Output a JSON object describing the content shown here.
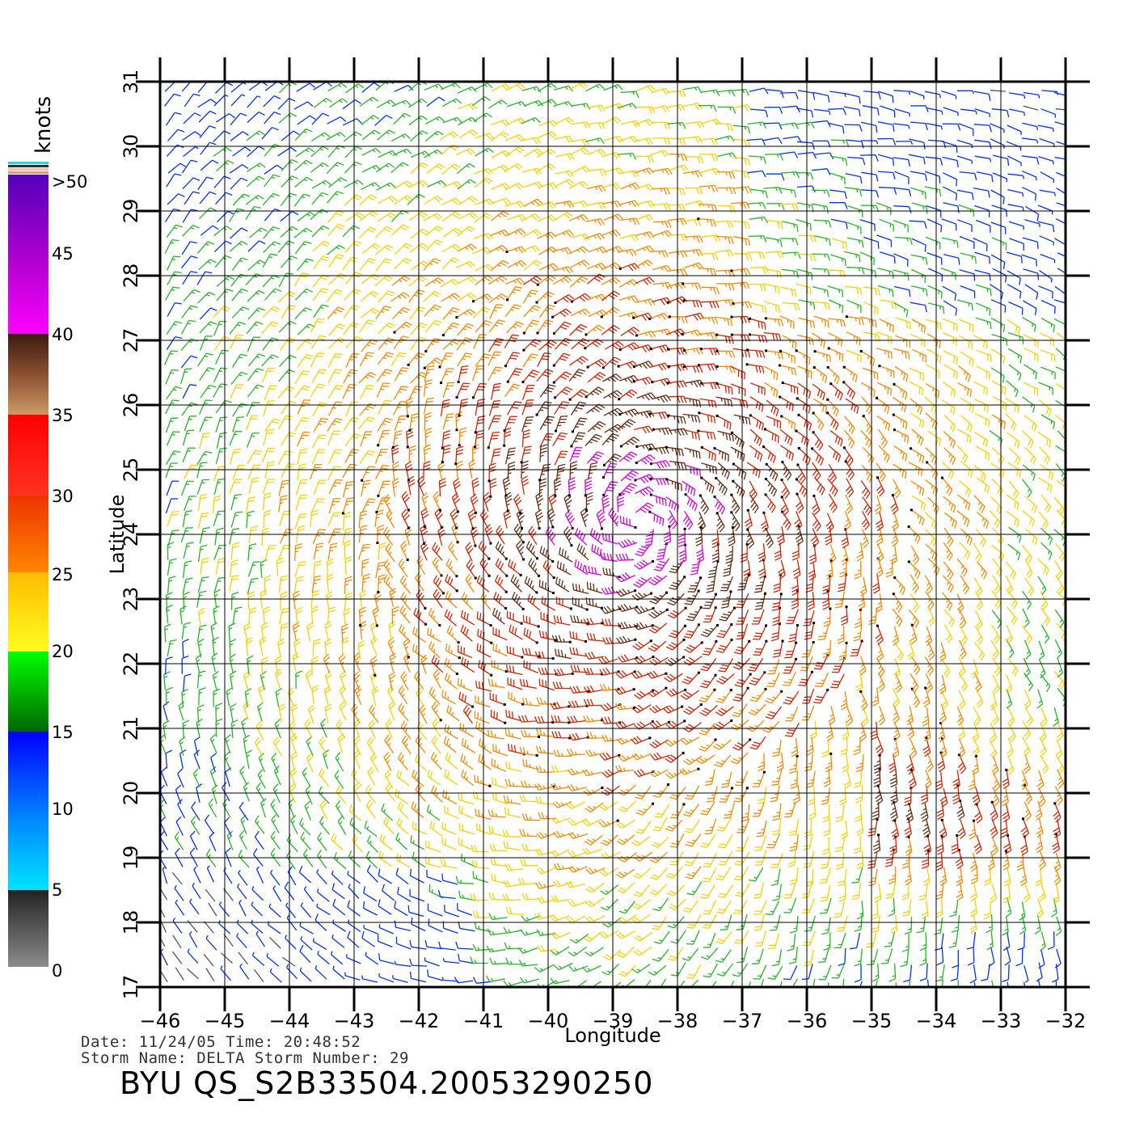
{
  "colorbar": {
    "unit_label": "knots",
    "labels": [
      ">50",
      "45",
      "40",
      "35",
      "30",
      "25",
      "20",
      "15",
      "10",
      "5",
      "0"
    ],
    "band_colors": {
      "gray": [
        "#808080",
        "#222222"
      ],
      "cyan_blue": [
        "#00e5ff",
        "#0000ff"
      ],
      "green": [
        "#00ff00",
        "#006600"
      ],
      "yellow_orange": [
        "#ffff22",
        "#ff8800"
      ],
      "red": [
        "#ff3300",
        "#ff0000"
      ],
      "brown": [
        "#cc9966",
        "#3a1a10"
      ],
      "magenta_violet": [
        "#ff00ff",
        "#5500bb"
      ]
    }
  },
  "chart_data": {
    "type": "wind-barb-map",
    "xlabel": "Longitude",
    "ylabel": "Latitude",
    "xlim": [
      -46,
      -32
    ],
    "ylim": [
      17,
      31
    ],
    "x_ticks": [
      "−46",
      "−45",
      "−44",
      "−43",
      "−42",
      "−41",
      "−40",
      "−39",
      "−38",
      "−37",
      "−36",
      "−35",
      "−34",
      "−33",
      "−32"
    ],
    "y_ticks": [
      "17",
      "18",
      "19",
      "20",
      "21",
      "22",
      "23",
      "24",
      "25",
      "26",
      "27",
      "28",
      "29",
      "30",
      "31"
    ],
    "grid": true,
    "storm_center": {
      "lon": -38.6,
      "lat": 24.2
    },
    "speed_colors_knots": {
      "0-5": "#555555",
      "5-15": "#0033ff",
      "15-20": "#22bb22",
      "20-25": "#ffd000",
      "25-30": "#ff8800",
      "30-35": "#dd2200",
      "35-40": "#6a2a10",
      "40-50": "#dd00dd",
      ">50": "#5500bb"
    }
  },
  "footer": {
    "date_line": "Date: 11/24/05   Time: 20:48:52",
    "storm_line": "Storm  Name: DELTA   Storm  Number: 29",
    "product_id": "BYU  QS_S2B33504.20053290250"
  }
}
